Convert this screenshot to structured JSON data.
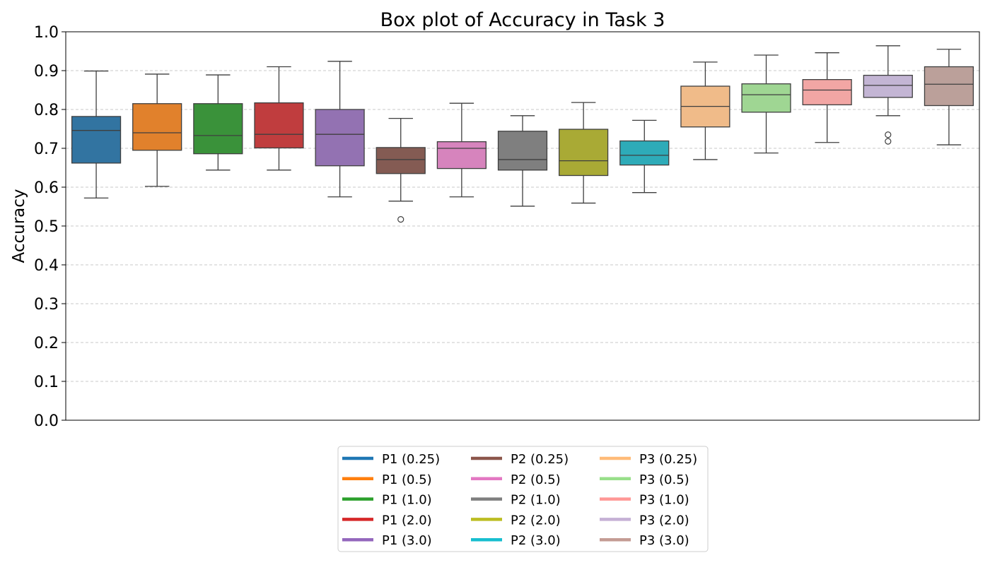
{
  "chart_data": {
    "type": "box",
    "title": "Box plot of Accuracy in Task 3",
    "xlabel": "",
    "ylabel": "Accuracy",
    "ylim": [
      0.0,
      1.0
    ],
    "yticks": [
      "0.0",
      "0.1",
      "0.2",
      "0.3",
      "0.4",
      "0.5",
      "0.6",
      "0.7",
      "0.8",
      "0.9",
      "1.0"
    ],
    "grid": "horizontal dashed",
    "legend_position": "bottom-center",
    "series": [
      {
        "name": "P1 (0.25)",
        "color": "#1f77b4",
        "box_color": "#3274a1",
        "whisker_low": 0.572,
        "q1": 0.662,
        "median": 0.746,
        "q3": 0.782,
        "whisker_high": 0.899,
        "outliers": []
      },
      {
        "name": "P1 (0.5)",
        "color": "#ff7f0e",
        "box_color": "#e1812c",
        "whisker_low": 0.602,
        "q1": 0.695,
        "median": 0.74,
        "q3": 0.815,
        "whisker_high": 0.891,
        "outliers": []
      },
      {
        "name": "P1 (1.0)",
        "color": "#2ca02c",
        "box_color": "#3a923a",
        "whisker_low": 0.644,
        "q1": 0.686,
        "median": 0.733,
        "q3": 0.815,
        "whisker_high": 0.889,
        "outliers": []
      },
      {
        "name": "P1 (2.0)",
        "color": "#d62728",
        "box_color": "#c03d3e",
        "whisker_low": 0.644,
        "q1": 0.701,
        "median": 0.736,
        "q3": 0.817,
        "whisker_high": 0.91,
        "outliers": []
      },
      {
        "name": "P1 (3.0)",
        "color": "#9467bd",
        "box_color": "#9372b2",
        "whisker_low": 0.575,
        "q1": 0.655,
        "median": 0.736,
        "q3": 0.8,
        "whisker_high": 0.924,
        "outliers": []
      },
      {
        "name": "P2 (0.25)",
        "color": "#8c564b",
        "box_color": "#845b53",
        "whisker_low": 0.564,
        "q1": 0.635,
        "median": 0.671,
        "q3": 0.702,
        "whisker_high": 0.777,
        "outliers": [
          0.517
        ]
      },
      {
        "name": "P2 (0.5)",
        "color": "#e377c2",
        "box_color": "#d684bd",
        "whisker_low": 0.575,
        "q1": 0.648,
        "median": 0.7,
        "q3": 0.717,
        "whisker_high": 0.816,
        "outliers": []
      },
      {
        "name": "P2 (1.0)",
        "color": "#7f7f7f",
        "box_color": "#7f7f7f",
        "whisker_low": 0.551,
        "q1": 0.644,
        "median": 0.671,
        "q3": 0.744,
        "whisker_high": 0.784,
        "outliers": []
      },
      {
        "name": "P2 (2.0)",
        "color": "#bcbd22",
        "box_color": "#a9aa35",
        "whisker_low": 0.559,
        "q1": 0.63,
        "median": 0.668,
        "q3": 0.749,
        "whisker_high": 0.818,
        "outliers": []
      },
      {
        "name": "P2 (3.0)",
        "color": "#17becf",
        "box_color": "#2eabb8",
        "whisker_low": 0.586,
        "q1": 0.657,
        "median": 0.682,
        "q3": 0.719,
        "whisker_high": 0.772,
        "outliers": []
      },
      {
        "name": "P3 (0.25)",
        "color": "#ffbb78",
        "box_color": "#f0bb89",
        "whisker_low": 0.671,
        "q1": 0.755,
        "median": 0.808,
        "q3": 0.86,
        "whisker_high": 0.922,
        "outliers": []
      },
      {
        "name": "P3 (0.5)",
        "color": "#98df8a",
        "box_color": "#9fd693",
        "whisker_low": 0.688,
        "q1": 0.793,
        "median": 0.838,
        "q3": 0.866,
        "whisker_high": 0.94,
        "outliers": []
      },
      {
        "name": "P3 (1.0)",
        "color": "#ff9896",
        "box_color": "#f2a6a4",
        "whisker_low": 0.715,
        "q1": 0.812,
        "median": 0.85,
        "q3": 0.877,
        "whisker_high": 0.946,
        "outliers": []
      },
      {
        "name": "P3 (2.0)",
        "color": "#c5b0d5",
        "box_color": "#c3b5d4",
        "whisker_low": 0.784,
        "q1": 0.831,
        "median": 0.862,
        "q3": 0.888,
        "whisker_high": 0.964,
        "outliers": [
          0.735,
          0.718
        ]
      },
      {
        "name": "P3 (3.0)",
        "color": "#c49c94",
        "box_color": "#bba09a",
        "whisker_low": 0.709,
        "q1": 0.81,
        "median": 0.865,
        "q3": 0.91,
        "whisker_high": 0.955,
        "outliers": []
      }
    ]
  }
}
